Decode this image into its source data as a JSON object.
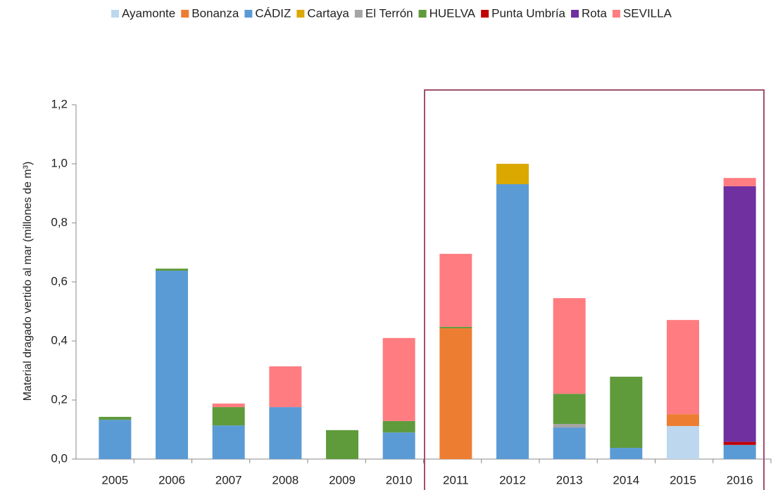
{
  "chart_data": {
    "type": "stacked-bar",
    "y_label": "Material dragado vertido al mar (millones de m³)",
    "categories": [
      "2005",
      "2006",
      "2007",
      "2008",
      "2009",
      "2010",
      "2011",
      "2012",
      "2013",
      "2014",
      "2015",
      "2016"
    ],
    "series": [
      {
        "name": "Ayamonte",
        "color": "#bdd7ee",
        "values": [
          null,
          null,
          null,
          null,
          null,
          null,
          null,
          null,
          null,
          null,
          0.112,
          null
        ]
      },
      {
        "name": "Bonanza",
        "color": "#ed7d31",
        "values": [
          null,
          null,
          null,
          null,
          null,
          null,
          0.443,
          null,
          null,
          null,
          0.04,
          null
        ]
      },
      {
        "name": "CÁDIZ",
        "color": "#5b9bd5",
        "values": [
          0.133,
          0.638,
          0.114,
          0.176,
          null,
          0.09,
          null,
          0.931,
          0.107,
          0.038,
          null,
          0.048
        ]
      },
      {
        "name": "Cartaya",
        "color": "#dba800",
        "values": [
          null,
          null,
          null,
          null,
          null,
          null,
          null,
          0.069,
          null,
          null,
          null,
          null
        ]
      },
      {
        "name": "El Terrón",
        "color": "#a5a5a5",
        "values": [
          null,
          null,
          null,
          null,
          null,
          null,
          null,
          null,
          0.012,
          null,
          null,
          null
        ]
      },
      {
        "name": "HUELVA",
        "color": "#5f9a3b",
        "values": [
          0.01,
          0.007,
          0.062,
          null,
          0.098,
          0.039,
          0.005,
          null,
          0.102,
          0.241,
          null,
          null
        ]
      },
      {
        "name": "Punta Umbría",
        "color": "#c00000",
        "values": [
          null,
          null,
          null,
          null,
          null,
          null,
          null,
          null,
          null,
          null,
          null,
          0.01
        ]
      },
      {
        "name": "Rota",
        "color": "#7030a0",
        "values": [
          null,
          null,
          null,
          null,
          null,
          null,
          null,
          null,
          null,
          null,
          null,
          0.866
        ]
      },
      {
        "name": "SEVILLA",
        "color": "#ff7c80",
        "values": [
          null,
          null,
          0.012,
          0.138,
          null,
          0.281,
          0.247,
          null,
          0.324,
          null,
          0.319,
          0.028
        ]
      }
    ],
    "ylim": [
      0,
      1.2
    ],
    "yticks": [
      {
        "value": 0,
        "label": "0,0"
      },
      {
        "value": 0.2,
        "label": "0,2"
      },
      {
        "value": 0.4,
        "label": "0,4"
      },
      {
        "value": 0.6,
        "label": "0,6"
      },
      {
        "value": 0.8,
        "label": "0,8"
      },
      {
        "value": 1.0,
        "label": "1,0"
      },
      {
        "value": 1.2,
        "label": "1,2"
      }
    ],
    "legend": "top-right"
  }
}
